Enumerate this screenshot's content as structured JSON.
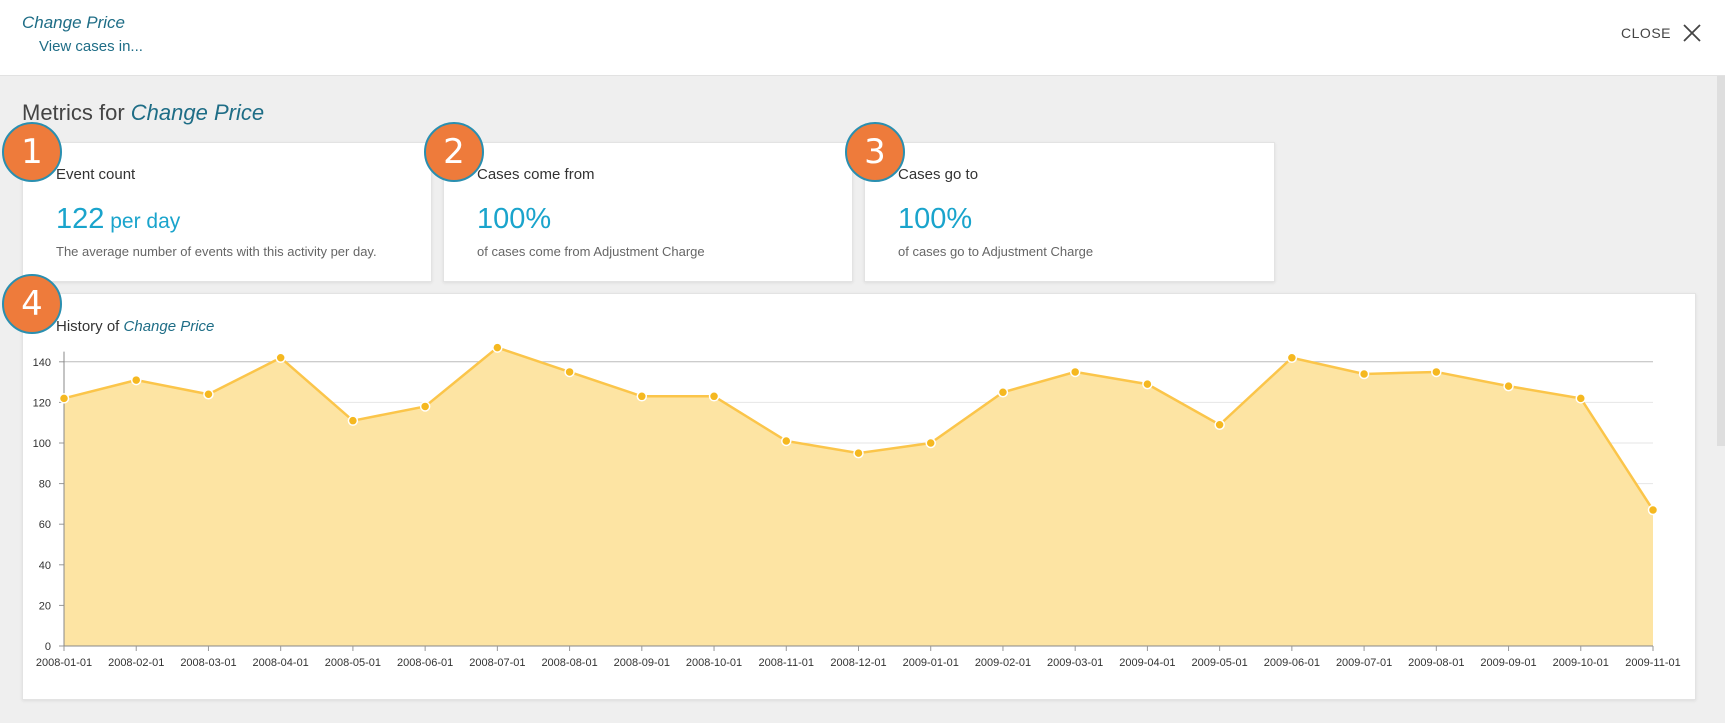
{
  "header": {
    "activity_name": "Change Price",
    "view_cases_label": "View cases in...",
    "close_label": "CLOSE"
  },
  "page": {
    "title_prefix": "Metrics for ",
    "title_activity": "Change Price"
  },
  "badges": [
    "1",
    "2",
    "3",
    "4"
  ],
  "cards": [
    {
      "title": "Event count",
      "value": "122",
      "unit": " per day",
      "description": "The average number of events with this activity per day."
    },
    {
      "title": "Cases come from",
      "value": "100%",
      "unit": "",
      "description": "of cases come from Adjustment Charge"
    },
    {
      "title": "Cases go to",
      "value": "100%",
      "unit": "",
      "description": "of cases go to Adjustment Charge"
    }
  ],
  "history": {
    "title_prefix": "History of ",
    "title_activity": "Change Price"
  },
  "colors": {
    "accent": "#1aa4cc",
    "link": "#1e6d86",
    "badge": "#ee7b3b",
    "area_fill": "#fde4a3",
    "line": "#fbc54a"
  },
  "chart_data": {
    "type": "area",
    "x": [
      "2008-01-01",
      "2008-02-01",
      "2008-03-01",
      "2008-04-01",
      "2008-05-01",
      "2008-06-01",
      "2008-07-01",
      "2008-08-01",
      "2008-09-01",
      "2008-10-01",
      "2008-11-01",
      "2008-12-01",
      "2009-01-01",
      "2009-02-01",
      "2009-03-01",
      "2009-04-01",
      "2009-05-01",
      "2009-06-01",
      "2009-07-01",
      "2009-08-01",
      "2009-09-01",
      "2009-10-01",
      "2009-11-01"
    ],
    "values": [
      122,
      131,
      124,
      142,
      111,
      118,
      147,
      135,
      123,
      123,
      101,
      95,
      100,
      125,
      135,
      129,
      109,
      142,
      134,
      135,
      128,
      122,
      67
    ],
    "ylim": [
      0,
      145
    ],
    "yticks": [
      0,
      20,
      40,
      60,
      80,
      100,
      120,
      140
    ],
    "grid": true,
    "title": "",
    "xlabel": "",
    "ylabel": ""
  }
}
